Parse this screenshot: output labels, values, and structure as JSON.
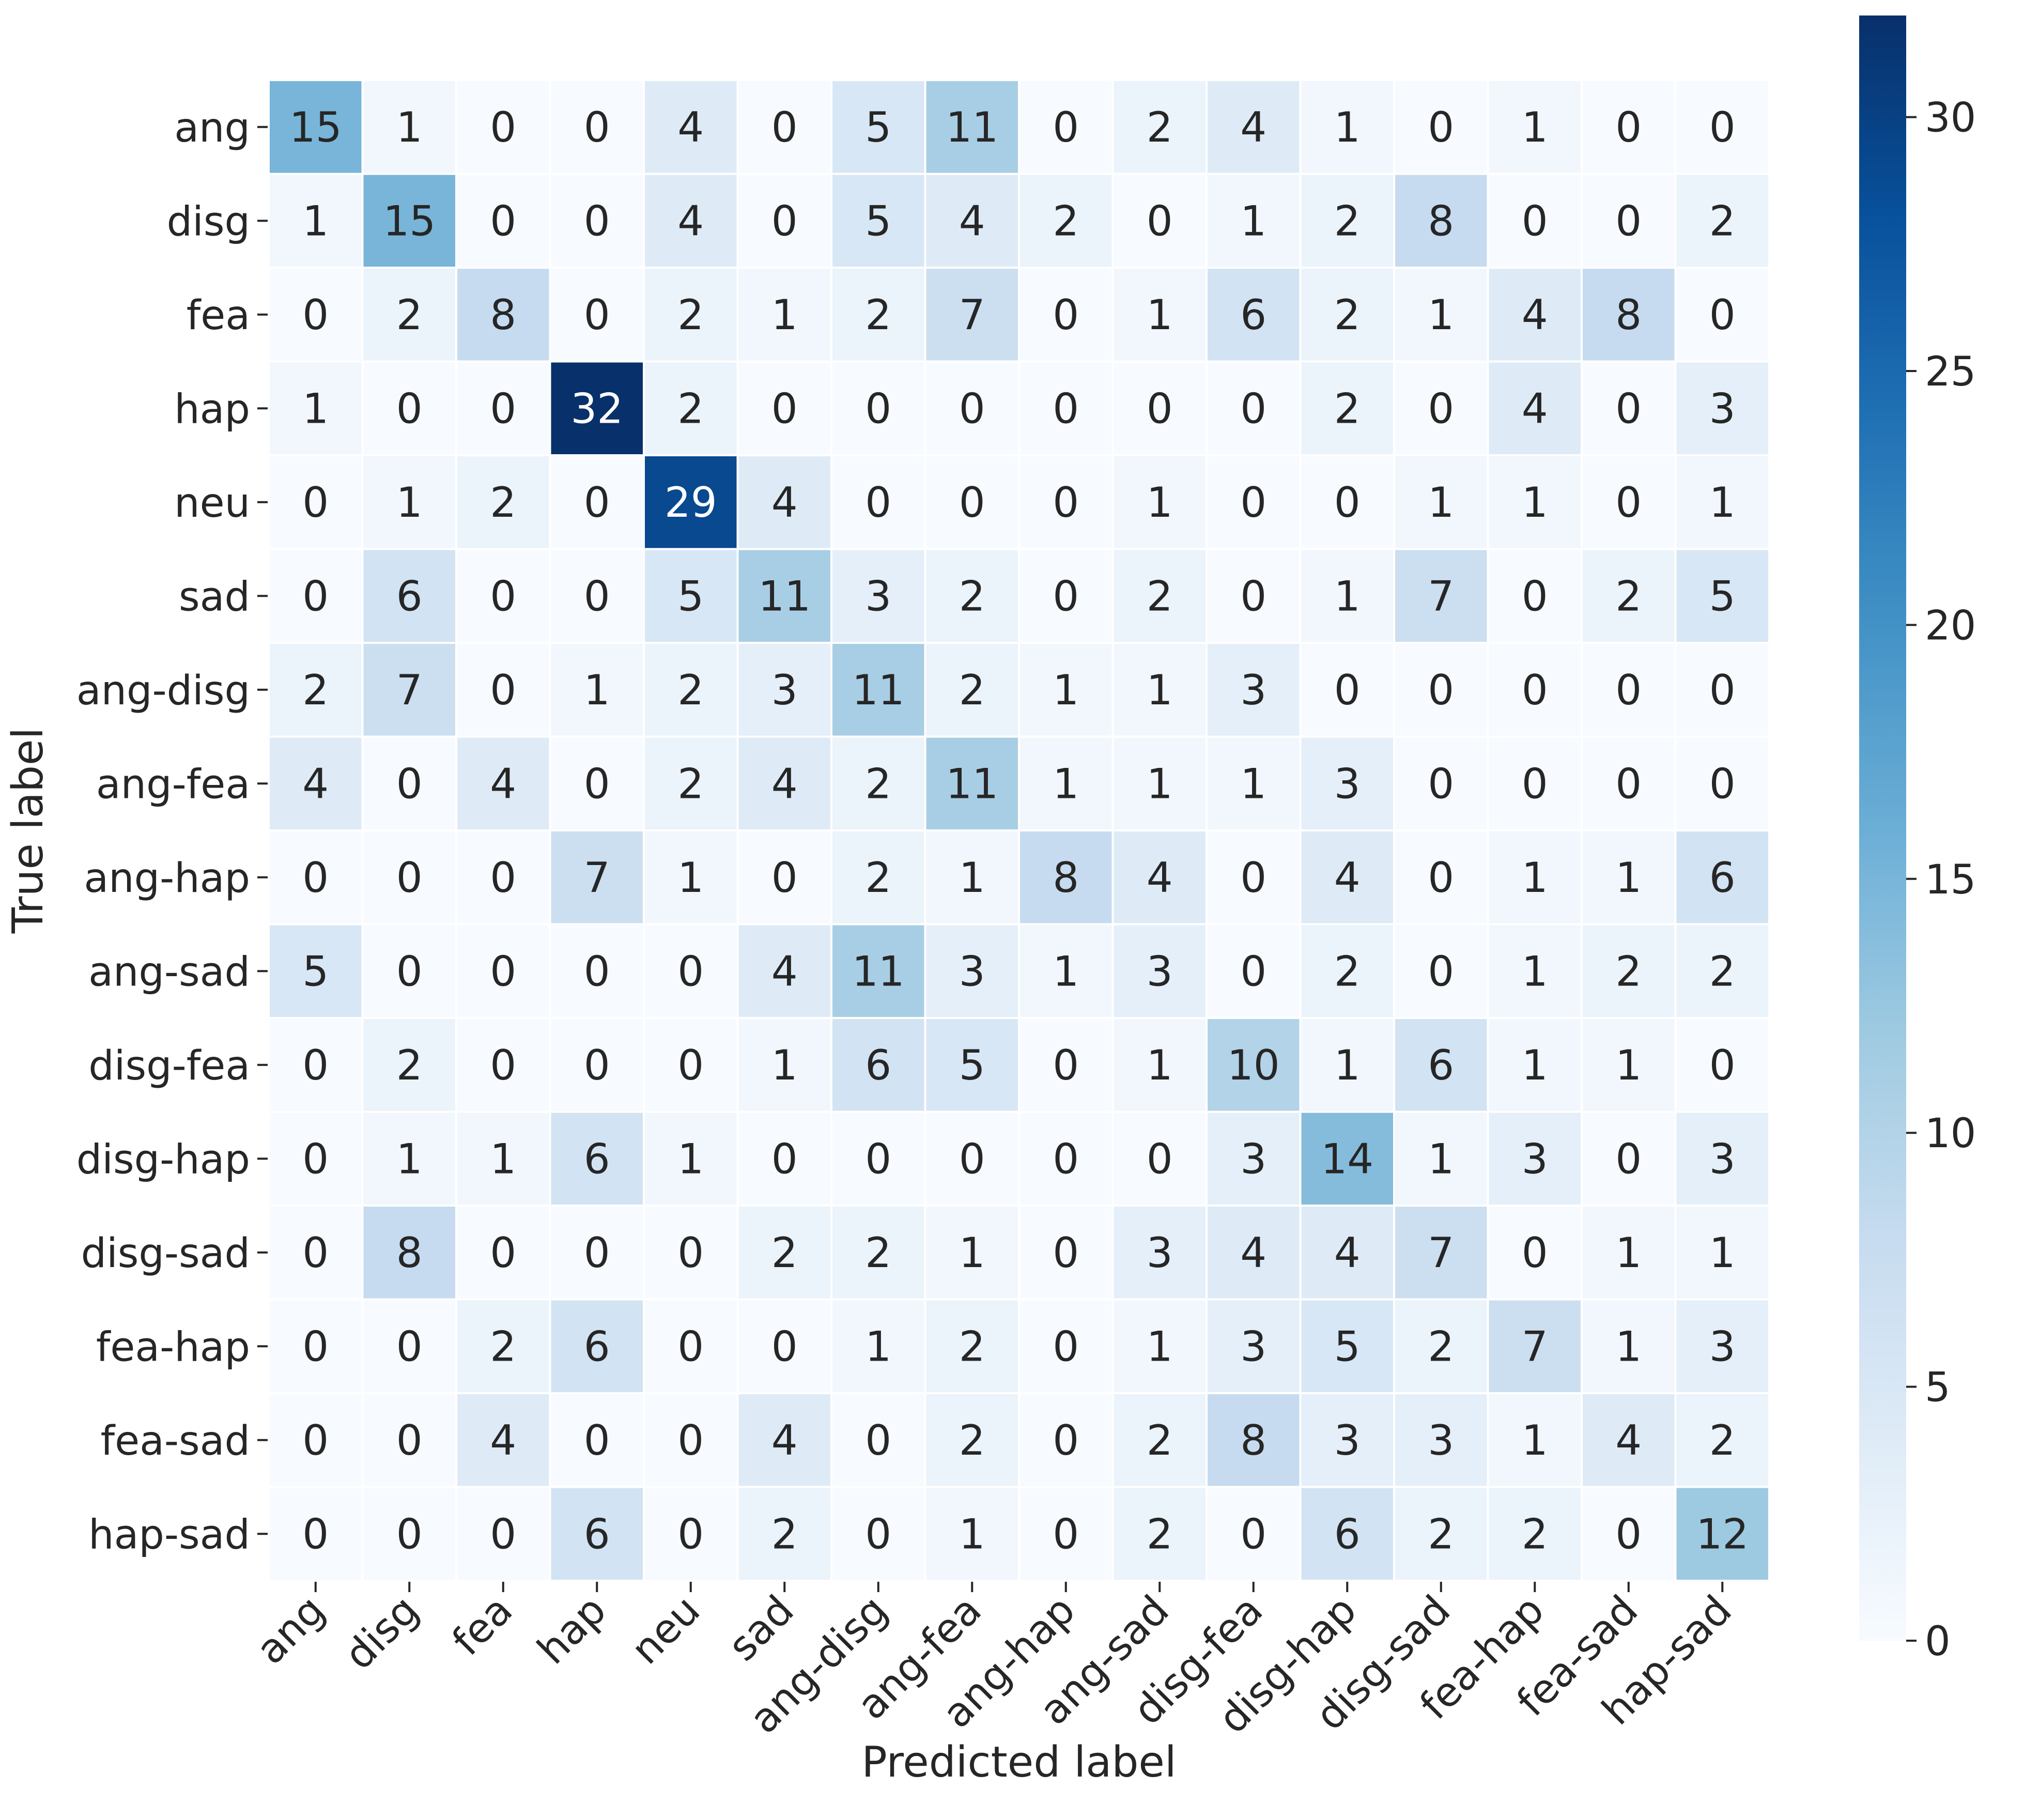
{
  "chart_data": {
    "type": "heatmap",
    "title": "",
    "xlabel": "Predicted label",
    "ylabel": "True label",
    "x_categories": [
      "ang",
      "disg",
      "fea",
      "hap",
      "neu",
      "sad",
      "ang-disg",
      "ang-fea",
      "ang-hap",
      "ang-sad",
      "disg-fea",
      "disg-hap",
      "disg-sad",
      "fea-hap",
      "fea-sad",
      "hap-sad"
    ],
    "y_categories": [
      "ang",
      "disg",
      "fea",
      "hap",
      "neu",
      "sad",
      "ang-disg",
      "ang-fea",
      "ang-hap",
      "ang-sad",
      "disg-fea",
      "disg-hap",
      "disg-sad",
      "fea-hap",
      "fea-sad",
      "hap-sad"
    ],
    "values": [
      [
        15,
        1,
        0,
        0,
        4,
        0,
        5,
        11,
        0,
        2,
        4,
        1,
        0,
        1,
        0,
        0
      ],
      [
        1,
        15,
        0,
        0,
        4,
        0,
        5,
        4,
        2,
        0,
        1,
        2,
        8,
        0,
        0,
        2
      ],
      [
        0,
        2,
        8,
        0,
        2,
        1,
        2,
        7,
        0,
        1,
        6,
        2,
        1,
        4,
        8,
        0
      ],
      [
        1,
        0,
        0,
        32,
        2,
        0,
        0,
        0,
        0,
        0,
        0,
        2,
        0,
        4,
        0,
        3
      ],
      [
        0,
        1,
        2,
        0,
        29,
        4,
        0,
        0,
        0,
        1,
        0,
        0,
        1,
        1,
        0,
        1
      ],
      [
        0,
        6,
        0,
        0,
        5,
        11,
        3,
        2,
        0,
        2,
        0,
        1,
        7,
        0,
        2,
        5
      ],
      [
        2,
        7,
        0,
        1,
        2,
        3,
        11,
        2,
        1,
        1,
        3,
        0,
        0,
        0,
        0,
        0
      ],
      [
        4,
        0,
        4,
        0,
        2,
        4,
        2,
        11,
        1,
        1,
        1,
        3,
        0,
        0,
        0,
        0
      ],
      [
        0,
        0,
        0,
        7,
        1,
        0,
        2,
        1,
        8,
        4,
        0,
        4,
        0,
        1,
        1,
        6
      ],
      [
        5,
        0,
        0,
        0,
        0,
        4,
        11,
        3,
        1,
        3,
        0,
        2,
        0,
        1,
        2,
        2
      ],
      [
        0,
        2,
        0,
        0,
        0,
        1,
        6,
        5,
        0,
        1,
        10,
        1,
        6,
        1,
        1,
        0
      ],
      [
        0,
        1,
        1,
        6,
        1,
        0,
        0,
        0,
        0,
        0,
        3,
        14,
        1,
        3,
        0,
        3
      ],
      [
        0,
        8,
        0,
        0,
        0,
        2,
        2,
        1,
        0,
        3,
        4,
        4,
        7,
        0,
        1,
        1
      ],
      [
        0,
        0,
        2,
        6,
        0,
        0,
        1,
        2,
        0,
        1,
        3,
        5,
        2,
        7,
        1,
        3
      ],
      [
        0,
        0,
        4,
        0,
        0,
        4,
        0,
        2,
        0,
        2,
        8,
        3,
        3,
        1,
        4,
        2
      ],
      [
        0,
        0,
        0,
        6,
        0,
        2,
        0,
        1,
        0,
        2,
        0,
        6,
        2,
        2,
        0,
        12
      ]
    ],
    "colormap": "Blues",
    "colorscale": {
      "min": 0,
      "max": 32,
      "ticks": [
        0,
        5,
        10,
        15,
        20,
        25,
        30
      ],
      "low_color": "#f7fbff",
      "high_color": "#08306b"
    },
    "grid": false,
    "legend": "right"
  }
}
